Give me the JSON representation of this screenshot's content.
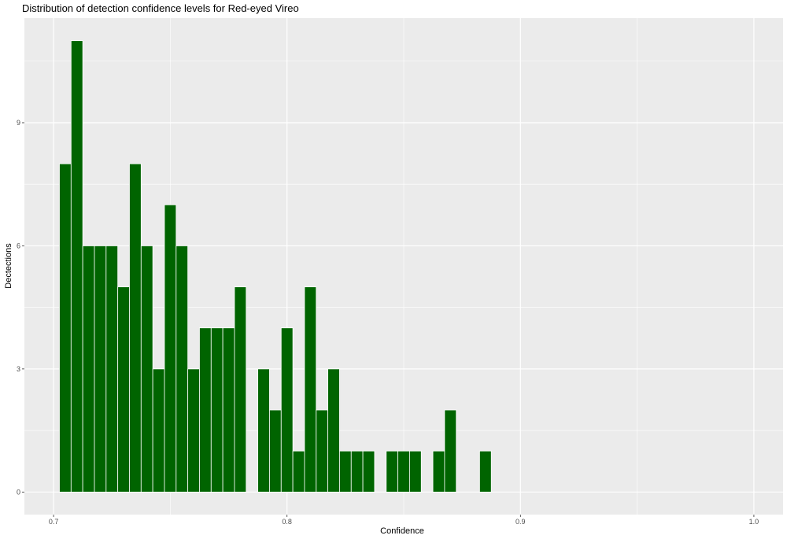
{
  "chart_data": {
    "type": "bar",
    "title": "Distribution of detection confidence levels for Red-eyed Vireo",
    "xlabel": "Confidence",
    "ylabel": "Dectections",
    "bin_width": 0.005,
    "xlim": [
      0.6875,
      1.0125
    ],
    "ylim": [
      -0.55,
      11.55
    ],
    "x_ticks": [
      0.7,
      0.8,
      0.9,
      1.0
    ],
    "x_tick_labels": [
      "0.7",
      "0.8",
      "0.9",
      "1.0"
    ],
    "y_ticks": [
      0,
      3,
      6,
      9
    ],
    "y_tick_labels": [
      "0",
      "3",
      "6",
      "9"
    ],
    "bins": [
      {
        "x": 0.705,
        "count": 8
      },
      {
        "x": 0.71,
        "count": 11
      },
      {
        "x": 0.715,
        "count": 6
      },
      {
        "x": 0.72,
        "count": 6
      },
      {
        "x": 0.725,
        "count": 6
      },
      {
        "x": 0.73,
        "count": 5
      },
      {
        "x": 0.735,
        "count": 8
      },
      {
        "x": 0.74,
        "count": 6
      },
      {
        "x": 0.745,
        "count": 3
      },
      {
        "x": 0.75,
        "count": 7
      },
      {
        "x": 0.755,
        "count": 6
      },
      {
        "x": 0.76,
        "count": 3
      },
      {
        "x": 0.765,
        "count": 4
      },
      {
        "x": 0.77,
        "count": 4
      },
      {
        "x": 0.775,
        "count": 4
      },
      {
        "x": 0.78,
        "count": 5
      },
      {
        "x": 0.79,
        "count": 3
      },
      {
        "x": 0.795,
        "count": 2
      },
      {
        "x": 0.8,
        "count": 4
      },
      {
        "x": 0.805,
        "count": 1
      },
      {
        "x": 0.81,
        "count": 5
      },
      {
        "x": 0.815,
        "count": 2
      },
      {
        "x": 0.82,
        "count": 3
      },
      {
        "x": 0.825,
        "count": 1
      },
      {
        "x": 0.83,
        "count": 1
      },
      {
        "x": 0.835,
        "count": 1
      },
      {
        "x": 0.845,
        "count": 1
      },
      {
        "x": 0.85,
        "count": 1
      },
      {
        "x": 0.855,
        "count": 1
      },
      {
        "x": 0.865,
        "count": 1
      },
      {
        "x": 0.87,
        "count": 2
      },
      {
        "x": 0.885,
        "count": 1
      }
    ],
    "grid": true,
    "colors": {
      "panel_background": "#ebebeb",
      "grid": "#ffffff",
      "bar_fill": "#006400",
      "bar_outline": "#ffffff"
    }
  }
}
